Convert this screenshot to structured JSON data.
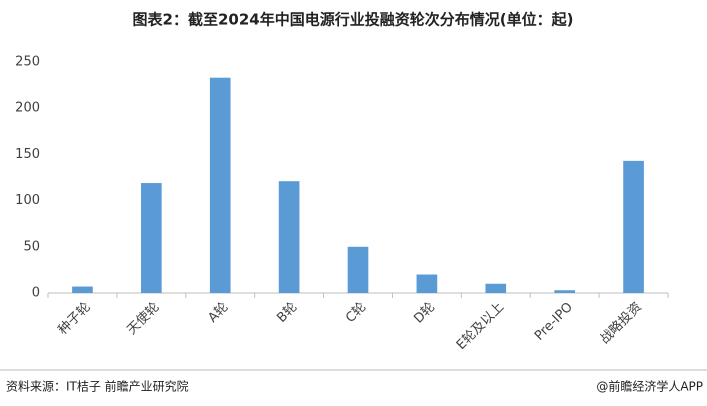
{
  "chart_data": {
    "type": "bar",
    "title": "图表2：截至2024年中国电源行业投融资轮次分布情况(单位：起)",
    "categories": [
      "种子轮",
      "天使轮",
      "A轮",
      "B轮",
      "C轮",
      "D轮",
      "E轮及以上",
      "Pre-IPO",
      "战略投资"
    ],
    "values": [
      7,
      119,
      233,
      121,
      50,
      20,
      10,
      3,
      143
    ],
    "color": "#5b9bd5",
    "ylim": [
      0,
      250
    ],
    "yticks": [
      0,
      50,
      100,
      150,
      200,
      250
    ],
    "grid": false
  },
  "footer": {
    "source": "资料来源：IT桔子 前瞻产业研究院",
    "brand": "@前瞻经济学人APP"
  }
}
